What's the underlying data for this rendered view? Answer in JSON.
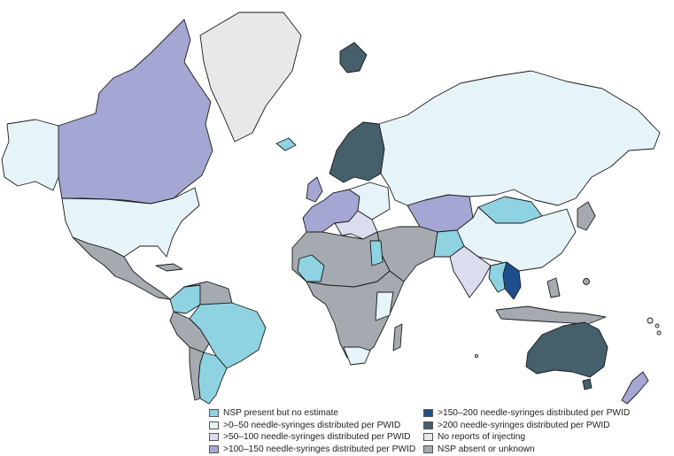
{
  "colors": {
    "ocean": "#ffffff",
    "nsp_no_estimate": "#8fd3e2",
    "0_50": "#e6f3f8",
    "50_100": "#dcdcef",
    "100_150": "#a4a7d3",
    "150_200": "#1f4e8c",
    "over_200": "#455f6b",
    "no_reports": "#e8e8e8",
    "absent_unknown": "#a5aab0",
    "border": "#1a1a1a"
  },
  "legend": {
    "left": [
      {
        "label": "NSP present but no estimate",
        "color": "#8fd3e2",
        "icon": "swatch"
      },
      {
        "label": ">0–50 needle-syringes distributed per PWID",
        "color": "#e6f3f8",
        "icon": "swatch"
      },
      {
        "label": ">50–100 needle-syringes distributed per PWID",
        "color": "#dcdcef",
        "icon": "swatch"
      },
      {
        "label": ">100–150 needle-syringes distributed per PWID",
        "color": "#a4a7d3",
        "icon": "swatch"
      }
    ],
    "right": [
      {
        "label": ">150–200 needle-syringes distributed per PWID",
        "color": "#1f4e8c",
        "icon": "swatch"
      },
      {
        "label": ">200 needle-syringes distributed per PWID",
        "color": "#455f6b",
        "icon": "swatch"
      },
      {
        "label": "No reports of injecting",
        "color": "#e8e8e8",
        "icon": "swatch"
      },
      {
        "label": "NSP absent or unknown",
        "color": "#a5aab0",
        "icon": "swatch"
      }
    ]
  }
}
